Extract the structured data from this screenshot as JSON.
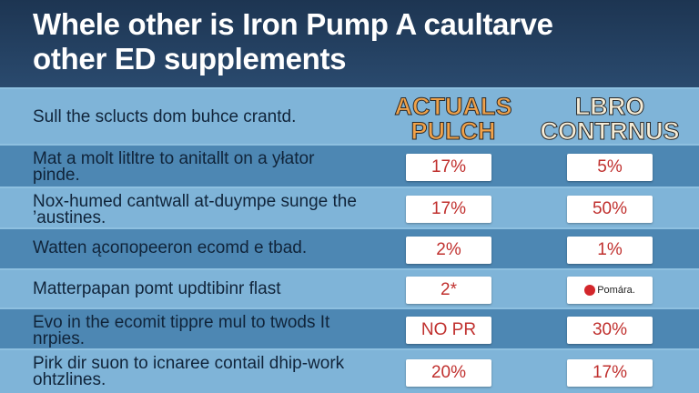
{
  "header": {
    "title_lines": [
      "Whele other is Iron Pump A caultarve",
      "other ED supplements"
    ]
  },
  "table": {
    "columns": [
      "Sull the sclucts dom buhce crantd.",
      "ACTUALS PULCH",
      "LBRO CONTRNUS"
    ],
    "rows": [
      [
        "Mat a molt litltre to anitallt on a yłator pinde.",
        "17%",
        "5%"
      ],
      [
        "Nox-humed cantwall at-duympe sunge the ’austines.",
        "17%",
        "50%"
      ],
      [
        "Watten ącoпopeeron ecomd e tbad.",
        "2%",
        "1%"
      ],
      [
        "Matterpapan pomt updtibinr flast",
        "2*",
        "Pomára."
      ],
      [
        "Evo in the ecomit tippre mul to twods It nrpies.",
        "NO PR",
        "30%"
      ],
      [
        "Pirk dir suon to icnaree contail dhip-work ohtzlines.",
        "20%",
        "17%"
      ]
    ]
  }
}
